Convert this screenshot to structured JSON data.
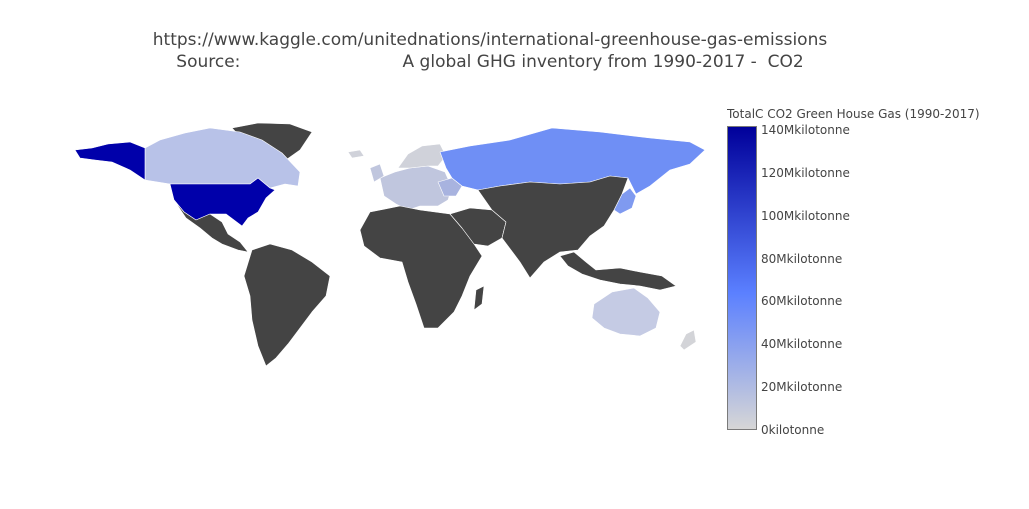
{
  "title": {
    "line1": "https://www.kaggle.com/unitednations/international-greenhouse-gas-emissions",
    "line2": "Source:                              A global GHG inventory from 1990-2017 -  CO2"
  },
  "colorbar": {
    "title": "TotalC CO2 Green House Gas (1990-2017)",
    "gradient": [
      "#d6d6d6",
      "#5b80ff",
      "#00009a"
    ],
    "ticks": [
      {
        "label": "140Mkilotonne",
        "value": 140
      },
      {
        "label": "120Mkilotonne",
        "value": 120
      },
      {
        "label": "100Mkilotonne",
        "value": 100
      },
      {
        "label": "80Mkilotonne",
        "value": 80
      },
      {
        "label": "60Mkilotonne",
        "value": 60
      },
      {
        "label": "40Mkilotonne",
        "value": 40
      },
      {
        "label": "20Mkilotonne",
        "value": 20
      },
      {
        "label": "0kilotonne",
        "value": 0
      }
    ],
    "range": [
      0,
      140
    ]
  },
  "map": {
    "no_data_color": "#444444",
    "border_color": "#ffffff",
    "regions": [
      {
        "name": "United States",
        "value_mkt": 140,
        "color": "#0000aa"
      },
      {
        "name": "Alaska",
        "value_mkt": 140,
        "color": "#0000aa"
      },
      {
        "name": "Canada",
        "value_mkt": 14,
        "color": "#b8c2e8"
      },
      {
        "name": "Russia",
        "value_mkt": 60,
        "color": "#6f8ff5"
      },
      {
        "name": "Japan",
        "value_mkt": 30,
        "color": "#7f9af0"
      },
      {
        "name": "Australia",
        "value_mkt": 10,
        "color": "#c5cbe4"
      },
      {
        "name": "Europe",
        "value_mkt": 12,
        "color": "#c0c6de"
      },
      {
        "name": "Ukraine",
        "value_mkt": 18,
        "color": "#a8b3df"
      },
      {
        "name": "Scandinavia",
        "value_mkt": 4,
        "color": "#d0d2da"
      },
      {
        "name": "New Zealand",
        "value_mkt": 2,
        "color": "#d3d4d8"
      },
      {
        "name": "Greenland",
        "value_mkt": null,
        "color": "#444444"
      }
    ]
  }
}
